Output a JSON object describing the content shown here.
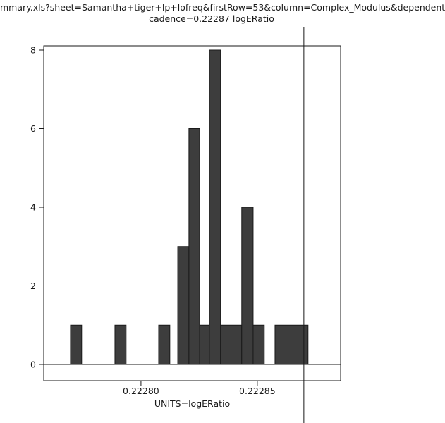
{
  "title": {
    "line1": "mmary.xls?sheet=Samantha+tiger+lp+lofreq&firstRow=53&column=Complex_Modulus&dependent",
    "line2": "cadence=0.22287 logERatio"
  },
  "chart_data": {
    "type": "bar",
    "subtype": "histogram",
    "title": "mmary.xls?sheet=Samantha+tiger+lp+lofreq&firstRow=53&column=Complex_Modulus&dependent cadence=0.22287 logERatio",
    "xlabel": "UNITS=logERatio",
    "ylabel": "",
    "xlim": [
      0.2227582,
      0.2228858
    ],
    "ylim": [
      -0.41,
      8.11
    ],
    "x_ticks": [
      0.2228,
      0.22285
    ],
    "x_tick_labels": [
      "0.22280",
      "0.22285"
    ],
    "y_ticks": [
      0,
      2,
      4,
      6,
      8
    ],
    "marker_x": 0.22287,
    "bar_color": "#3d3d3d",
    "line_color": "#1a1a1a",
    "grid": false,
    "legend": false,
    "bins": [
      {
        "x0": 0.2227697,
        "x1": 0.2227745,
        "count": 1
      },
      {
        "x0": 0.2227888,
        "x1": 0.2227936,
        "count": 1
      },
      {
        "x0": 0.2228076,
        "x1": 0.2228124,
        "count": 1
      },
      {
        "x0": 0.2228158,
        "x1": 0.2228206,
        "count": 3
      },
      {
        "x0": 0.2228206,
        "x1": 0.2228252,
        "count": 6
      },
      {
        "x0": 0.2228252,
        "x1": 0.2228294,
        "count": 1
      },
      {
        "x0": 0.2228294,
        "x1": 0.2228342,
        "count": 8
      },
      {
        "x0": 0.2228342,
        "x1": 0.2228433,
        "count": 1
      },
      {
        "x0": 0.2228433,
        "x1": 0.2228482,
        "count": 4
      },
      {
        "x0": 0.2228482,
        "x1": 0.222853,
        "count": 1
      },
      {
        "x0": 0.2228576,
        "x1": 0.2228718,
        "count": 1
      }
    ]
  }
}
